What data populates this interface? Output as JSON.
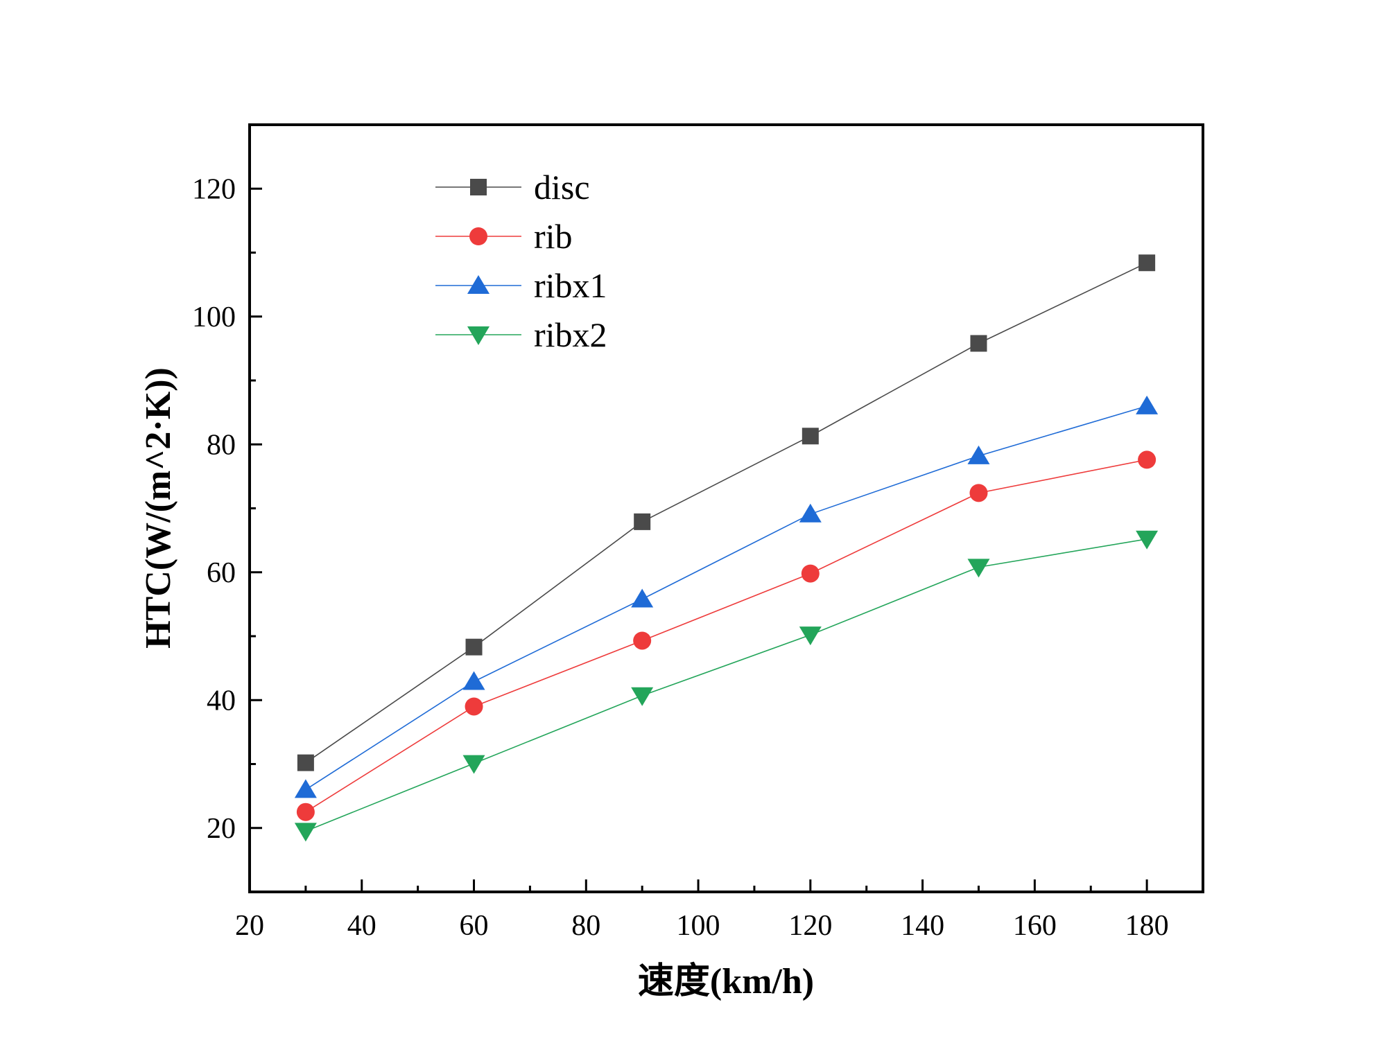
{
  "chart_data": {
    "type": "line",
    "xlabel": "速度(km/h)",
    "ylabel": "HTC(W/(m^2·K))",
    "xlim": [
      20,
      190
    ],
    "ylim": [
      10,
      130
    ],
    "xticks": [
      20,
      40,
      60,
      80,
      100,
      120,
      140,
      160,
      180
    ],
    "yticks": [
      20,
      40,
      60,
      80,
      100,
      120
    ],
    "x": [
      30,
      60,
      90,
      120,
      150,
      180
    ],
    "legend_position": "top-left",
    "grid": false,
    "series": [
      {
        "name": "disc",
        "marker": "square",
        "color": "#4a4a4a",
        "values": [
          30.2,
          48.3,
          67.9,
          81.3,
          95.8,
          108.4
        ]
      },
      {
        "name": "rib",
        "marker": "circle",
        "color": "#ee3b3b",
        "values": [
          22.5,
          39.0,
          49.3,
          59.8,
          72.4,
          77.6
        ]
      },
      {
        "name": "ribx1",
        "marker": "triangle-up",
        "color": "#1f6bd6",
        "values": [
          26.0,
          42.9,
          55.8,
          69.1,
          78.2,
          86.0
        ]
      },
      {
        "name": "ribx2",
        "marker": "triangle-down",
        "color": "#23a55a",
        "values": [
          19.5,
          30.1,
          40.7,
          50.2,
          60.8,
          65.2
        ]
      }
    ]
  }
}
